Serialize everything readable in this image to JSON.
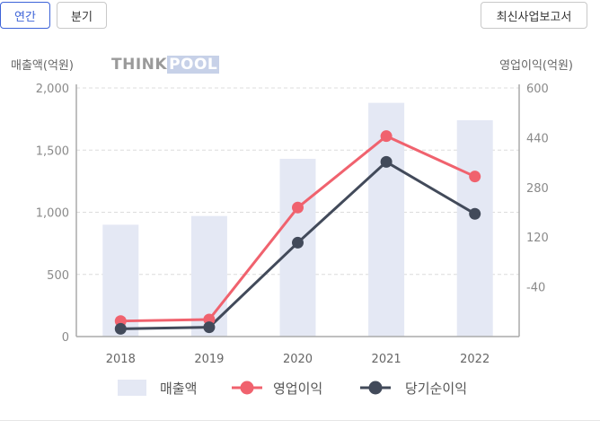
{
  "controls": {
    "annual_label": "연간",
    "quarter_label": "분기",
    "report_label": "최신사업보고서"
  },
  "logo": {
    "part1": "THINK",
    "part2": "POOL"
  },
  "colors": {
    "accent": "#3d63d8",
    "bar": "#e4e8f4",
    "operating_profit": "#f0626e",
    "net_income": "#424a5a"
  },
  "chart_data": {
    "type": "bar",
    "categories": [
      "2018",
      "2019",
      "2020",
      "2021",
      "2022"
    ],
    "left_axis": {
      "label": "매출액(억원)",
      "ylim": [
        0,
        2000
      ],
      "ticks": [
        0,
        500,
        1000,
        1500,
        2000
      ],
      "tick_labels": [
        "0",
        "500",
        "1,000",
        "1,500",
        "2,000"
      ]
    },
    "right_axis": {
      "label": "영업이익(억원)",
      "ylim": [
        -200,
        600
      ],
      "ticks": [
        -40,
        120,
        280,
        440,
        600
      ],
      "tick_labels": [
        "-40",
        "120",
        "280",
        "440",
        "600"
      ]
    },
    "series": [
      {
        "name": "매출액",
        "type": "bar",
        "axis": "left",
        "values": [
          900,
          970,
          1430,
          1880,
          1740
        ]
      },
      {
        "name": "영업이익",
        "type": "line",
        "axis": "right",
        "values": [
          -150,
          -145,
          215,
          445,
          315
        ]
      },
      {
        "name": "당기순이익",
        "type": "line",
        "axis": "right",
        "values": [
          -175,
          -170,
          102,
          362,
          195
        ]
      }
    ],
    "grid": true,
    "legend": "bottom"
  }
}
